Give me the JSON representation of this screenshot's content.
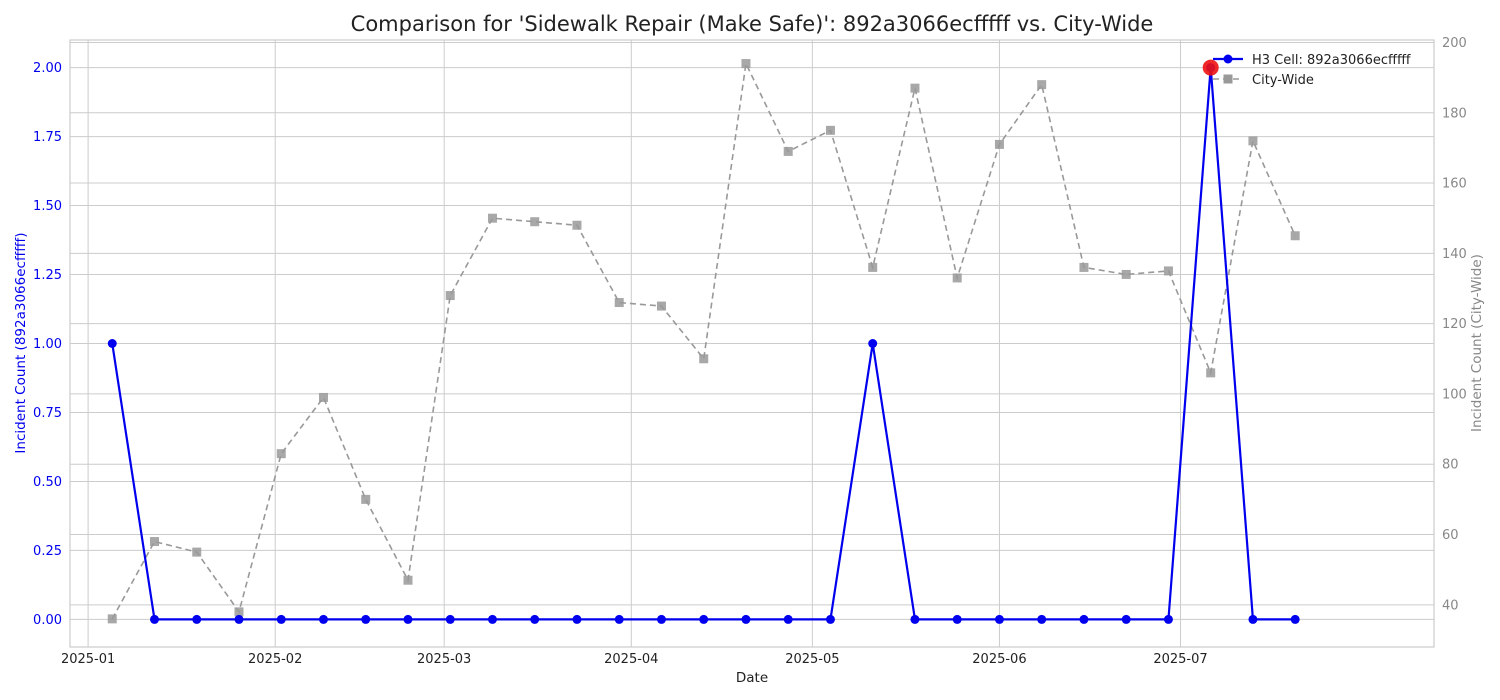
{
  "chart_data": {
    "type": "line",
    "title": "Comparison for 'Sidewalk Repair (Make Safe)': 892a3066ecfffff vs. City-Wide",
    "xlabel": "Date",
    "ylabel_left": "Incident Count (892a3066ecfffff)",
    "ylabel_right": "Incident Count (City-Wide)",
    "x_tick_labels": [
      "2025-01",
      "2025-02",
      "2025-03",
      "2025-04",
      "2025-05",
      "2025-06",
      "2025-07"
    ],
    "x_ticks": [
      "2025-01-01",
      "2025-02-01",
      "2025-03-01",
      "2025-04-01",
      "2025-05-01",
      "2025-06-01",
      "2025-07-01"
    ],
    "xlim": [
      "2024-12-29",
      "2025-08-12"
    ],
    "ylim_left": [
      -0.1,
      2.1
    ],
    "yticks_left": [
      0.0,
      0.25,
      0.5,
      0.75,
      1.0,
      1.25,
      1.5,
      1.75,
      2.0
    ],
    "ytick_labels_left": [
      "0.00",
      "0.25",
      "0.50",
      "0.75",
      "1.00",
      "1.25",
      "1.50",
      "1.75",
      "2.00"
    ],
    "ylim_right": [
      28,
      200.7
    ],
    "yticks_right": [
      40,
      60,
      80,
      100,
      120,
      140,
      160,
      180,
      200
    ],
    "ytick_labels_right": [
      "40",
      "60",
      "80",
      "100",
      "120",
      "140",
      "160",
      "180",
      "200"
    ],
    "x": [
      "2025-01-05",
      "2025-01-12",
      "2025-01-19",
      "2025-01-26",
      "2025-02-02",
      "2025-02-09",
      "2025-02-16",
      "2025-02-23",
      "2025-03-02",
      "2025-03-09",
      "2025-03-16",
      "2025-03-23",
      "2025-03-30",
      "2025-04-06",
      "2025-04-13",
      "2025-04-20",
      "2025-04-27",
      "2025-05-04",
      "2025-05-11",
      "2025-05-18",
      "2025-05-25",
      "2025-06-01",
      "2025-06-08",
      "2025-06-15",
      "2025-06-22",
      "2025-06-29",
      "2025-07-06",
      "2025-07-13",
      "2025-07-20"
    ],
    "series": [
      {
        "name": "H3 Cell: 892a3066ecfffff",
        "axis": "left",
        "color": "#0000ee",
        "marker": "circle",
        "line_style": "solid",
        "values": [
          1,
          0,
          0,
          0,
          0,
          0,
          0,
          0,
          0,
          0,
          0,
          0,
          0,
          0,
          0,
          0,
          0,
          0,
          1,
          0,
          0,
          0,
          0,
          0,
          0,
          0,
          2,
          0,
          0
        ]
      },
      {
        "name": "City-Wide",
        "axis": "right",
        "color": "#999999",
        "marker": "square",
        "line_style": "dashed",
        "values": [
          36,
          58,
          55,
          38,
          83,
          99,
          70,
          47,
          128,
          150,
          149,
          148,
          126,
          125,
          110,
          194,
          169,
          175,
          136,
          187,
          133,
          171,
          188,
          136,
          134,
          135,
          106,
          172,
          145
        ]
      }
    ],
    "highlight": {
      "series": "H3 Cell: 892a3066ecfffff",
      "x": "2025-07-06",
      "value": 2,
      "color": "#ee1111"
    },
    "grid": true,
    "legend_position": "top-right"
  },
  "colors": {
    "left_axis": "#0000ee",
    "right_axis": "#888888",
    "grid": "#cccccc",
    "frame": "#cccccc",
    "text": "#222222"
  }
}
